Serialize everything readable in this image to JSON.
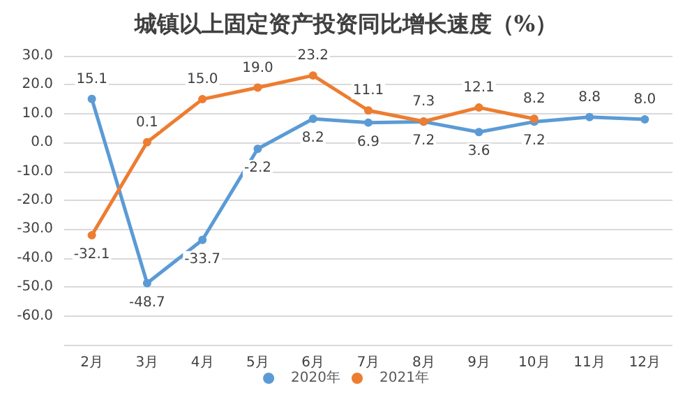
{
  "chart_data": {
    "type": "line",
    "title": "城镇以上固定资产投资同比增长速度（%）",
    "categories": [
      "2月",
      "3月",
      "4月",
      "5月",
      "6月",
      "7月",
      "8月",
      "9月",
      "10月",
      "11月",
      "12月"
    ],
    "series": [
      {
        "name": "2020年",
        "color": "#5b9bd5",
        "values": [
          15.1,
          -48.7,
          -33.7,
          -2.2,
          8.2,
          6.9,
          7.2,
          3.6,
          7.2,
          8.8,
          8.0
        ],
        "value_labels": [
          "15.1",
          "-48.7",
          "-33.7",
          "-2.2",
          "8.2",
          "6.9",
          "7.2",
          "3.6",
          "7.2",
          "8.8",
          "8.0"
        ]
      },
      {
        "name": "2021年",
        "color": "#ed7d31",
        "values": [
          -32.1,
          0.1,
          15.0,
          19.0,
          23.2,
          11.1,
          7.3,
          12.1,
          8.2,
          null,
          null
        ],
        "value_labels": [
          "-32.1",
          "0.1",
          "15.0",
          "19.0",
          "23.2",
          "11.1",
          "7.3",
          "12.1",
          "8.2",
          null,
          null
        ]
      }
    ],
    "ylim": [
      -70,
      30
    ],
    "yticks": [
      {
        "value": -70,
        "label": null
      },
      {
        "value": -60,
        "label": "-60.0"
      },
      {
        "value": -50,
        "label": "-50.0"
      },
      {
        "value": -40,
        "label": "-40.0"
      },
      {
        "value": -30,
        "label": "-30.0"
      },
      {
        "value": -20,
        "label": "-20.0"
      },
      {
        "value": -10,
        "label": "-10.0"
      },
      {
        "value": 0,
        "label": "0.0"
      },
      {
        "value": 10,
        "label": "10.0"
      },
      {
        "value": 20,
        "label": "20.0"
      },
      {
        "value": 30,
        "label": "30.0"
      }
    ],
    "grid": "y",
    "legend": "bottom",
    "marker": "circle",
    "line_style": "solid"
  }
}
